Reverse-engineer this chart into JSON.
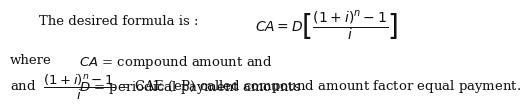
{
  "bg_color": "#ffffff",
  "text_color": "#111111",
  "line1_left": "The desired formula is :",
  "line1_formula": "$CA = D\\left[\\dfrac{(1+i)^{n}-1}{i}\\right]$",
  "line2a": "where",
  "line2b": "$CA$ = compound amount and",
  "line3b": "$D$ = periodical payment amounts",
  "line4": "and  $\\dfrac{(1+i)^{n}-1}{i}$ = CAE (eP) called compound amount factor equal payment.",
  "fontsize": 9.5
}
